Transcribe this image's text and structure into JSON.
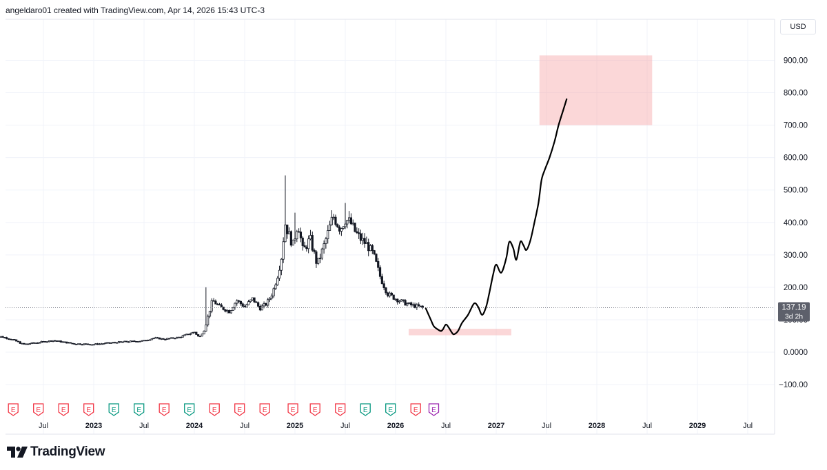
{
  "header": {
    "caption": "angeldaro01 created with TradingView.com, Apr 14, 2026 15:43 UTC-3"
  },
  "brand": {
    "name": "TradingView"
  },
  "price_scale": {
    "currency": "USD",
    "last_price": "137.19",
    "countdown": "3d 2h"
  },
  "chart_data": {
    "type": "candlestick",
    "title": "",
    "y_ticks": [
      "900.00",
      "800.00",
      "700.00",
      "600.00",
      "500.00",
      "400.00",
      "300.00",
      "200.00",
      "100.00",
      "0.0000",
      "−100.00"
    ],
    "y_tick_values": [
      900,
      800,
      700,
      600,
      500,
      400,
      300,
      200,
      100,
      0,
      -100
    ],
    "ylim": [
      -150,
      960
    ],
    "x_ticks": [
      {
        "label": "Jul",
        "t": 2022.5,
        "year": false
      },
      {
        "label": "2023",
        "t": 2023.0,
        "year": true
      },
      {
        "label": "Jul",
        "t": 2023.5,
        "year": false
      },
      {
        "label": "2024",
        "t": 2024.0,
        "year": true
      },
      {
        "label": "Jul",
        "t": 2024.5,
        "year": false
      },
      {
        "label": "2025",
        "t": 2025.0,
        "year": true
      },
      {
        "label": "Jul",
        "t": 2025.5,
        "year": false
      },
      {
        "label": "2026",
        "t": 2026.0,
        "year": true
      },
      {
        "label": "Jul",
        "t": 2026.5,
        "year": false
      },
      {
        "label": "2027",
        "t": 2027.0,
        "year": true
      },
      {
        "label": "Jul",
        "t": 2027.5,
        "year": false
      },
      {
        "label": "2028",
        "t": 2028.0,
        "year": true
      },
      {
        "label": "Jul",
        "t": 2028.5,
        "year": false
      },
      {
        "label": "2029",
        "t": 2029.0,
        "year": true
      },
      {
        "label": "Jul",
        "t": 2029.5,
        "year": false
      }
    ],
    "xlim": [
      2022.0,
      2030.0
    ],
    "last_price_value": 137.19,
    "price_anchors": [
      [
        2022.0,
        42
      ],
      [
        2022.08,
        48
      ],
      [
        2022.2,
        38
      ],
      [
        2022.3,
        24
      ],
      [
        2022.45,
        30
      ],
      [
        2022.6,
        36
      ],
      [
        2022.8,
        26
      ],
      [
        2023.0,
        24
      ],
      [
        2023.15,
        28
      ],
      [
        2023.3,
        32
      ],
      [
        2023.5,
        35
      ],
      [
        2023.6,
        44
      ],
      [
        2023.7,
        40
      ],
      [
        2023.85,
        46
      ],
      [
        2024.0,
        62
      ],
      [
        2024.05,
        45
      ],
      [
        2024.1,
        70
      ],
      [
        2024.18,
        160
      ],
      [
        2024.25,
        140
      ],
      [
        2024.35,
        125
      ],
      [
        2024.42,
        160
      ],
      [
        2024.5,
        140
      ],
      [
        2024.58,
        165
      ],
      [
        2024.65,
        135
      ],
      [
        2024.72,
        150
      ],
      [
        2024.78,
        185
      ],
      [
        2024.83,
        240
      ],
      [
        2024.87,
        300
      ],
      [
        2024.9,
        400
      ],
      [
        2024.93,
        370
      ],
      [
        2024.98,
        330
      ],
      [
        2025.03,
        400
      ],
      [
        2025.08,
        310
      ],
      [
        2025.15,
        350
      ],
      [
        2025.22,
        270
      ],
      [
        2025.28,
        320
      ],
      [
        2025.32,
        360
      ],
      [
        2025.38,
        420
      ],
      [
        2025.45,
        380
      ],
      [
        2025.5,
        410
      ],
      [
        2025.55,
        400
      ],
      [
        2025.6,
        370
      ],
      [
        2025.65,
        350
      ],
      [
        2025.72,
        330
      ],
      [
        2025.78,
        300
      ],
      [
        2025.85,
        230
      ],
      [
        2025.92,
        180
      ],
      [
        2026.0,
        165
      ],
      [
        2026.1,
        150
      ],
      [
        2026.18,
        143
      ],
      [
        2026.28,
        137.19
      ]
    ],
    "price_spikes": [
      [
        2024.12,
        200
      ],
      [
        2024.9,
        545
      ],
      [
        2025.0,
        430
      ],
      [
        2025.5,
        460
      ],
      [
        2025.08,
        230
      ]
    ],
    "projection_path": [
      [
        2026.3,
        135
      ],
      [
        2026.35,
        100
      ],
      [
        2026.38,
        80
      ],
      [
        2026.42,
        70
      ],
      [
        2026.45,
        65
      ],
      [
        2026.47,
        70
      ],
      [
        2026.5,
        85
      ],
      [
        2026.53,
        75
      ],
      [
        2026.56,
        60
      ],
      [
        2026.58,
        55
      ],
      [
        2026.62,
        65
      ],
      [
        2026.66,
        90
      ],
      [
        2026.72,
        115
      ],
      [
        2026.78,
        150
      ],
      [
        2026.82,
        140
      ],
      [
        2026.86,
        115
      ],
      [
        2026.9,
        140
      ],
      [
        2026.93,
        180
      ],
      [
        2026.97,
        240
      ],
      [
        2027.0,
        270
      ],
      [
        2027.05,
        245
      ],
      [
        2027.1,
        290
      ],
      [
        2027.13,
        340
      ],
      [
        2027.17,
        320
      ],
      [
        2027.2,
        285
      ],
      [
        2027.24,
        340
      ],
      [
        2027.27,
        330
      ],
      [
        2027.3,
        315
      ],
      [
        2027.34,
        345
      ],
      [
        2027.38,
        400
      ],
      [
        2027.42,
        460
      ],
      [
        2027.45,
        530
      ],
      [
        2027.48,
        560
      ],
      [
        2027.53,
        600
      ],
      [
        2027.58,
        650
      ],
      [
        2027.62,
        700
      ],
      [
        2027.67,
        750
      ],
      [
        2027.7,
        780
      ]
    ],
    "zones": [
      {
        "t0": 2026.13,
        "t1": 2027.15,
        "p0": 52,
        "p1": 72
      },
      {
        "t0": 2027.43,
        "t1": 2028.55,
        "p0": 700,
        "p1": 915
      }
    ],
    "earnings_markers": [
      {
        "t": 2022.2,
        "color": "red"
      },
      {
        "t": 2022.45,
        "color": "red"
      },
      {
        "t": 2022.7,
        "color": "red"
      },
      {
        "t": 2022.95,
        "color": "red"
      },
      {
        "t": 2023.2,
        "color": "green"
      },
      {
        "t": 2023.45,
        "color": "green"
      },
      {
        "t": 2023.7,
        "color": "red"
      },
      {
        "t": 2023.95,
        "color": "green"
      },
      {
        "t": 2024.2,
        "color": "red"
      },
      {
        "t": 2024.45,
        "color": "red"
      },
      {
        "t": 2024.7,
        "color": "red"
      },
      {
        "t": 2024.98,
        "color": "red"
      },
      {
        "t": 2025.2,
        "color": "red"
      },
      {
        "t": 2025.45,
        "color": "red"
      },
      {
        "t": 2025.7,
        "color": "green"
      },
      {
        "t": 2025.95,
        "color": "green"
      },
      {
        "t": 2026.2,
        "color": "red"
      },
      {
        "t": 2026.38,
        "color": "purple"
      }
    ],
    "earnings_label": "E",
    "colors": {
      "candle": "#131722",
      "projection": "#000000",
      "zone": "#f7a6a8",
      "price_line": "#787b86",
      "price_label_bg": "#5d606b",
      "grid": "#f0f3fa",
      "earn_red": "#f23645",
      "earn_green": "#089981",
      "earn_purple": "#9c27b0"
    }
  }
}
